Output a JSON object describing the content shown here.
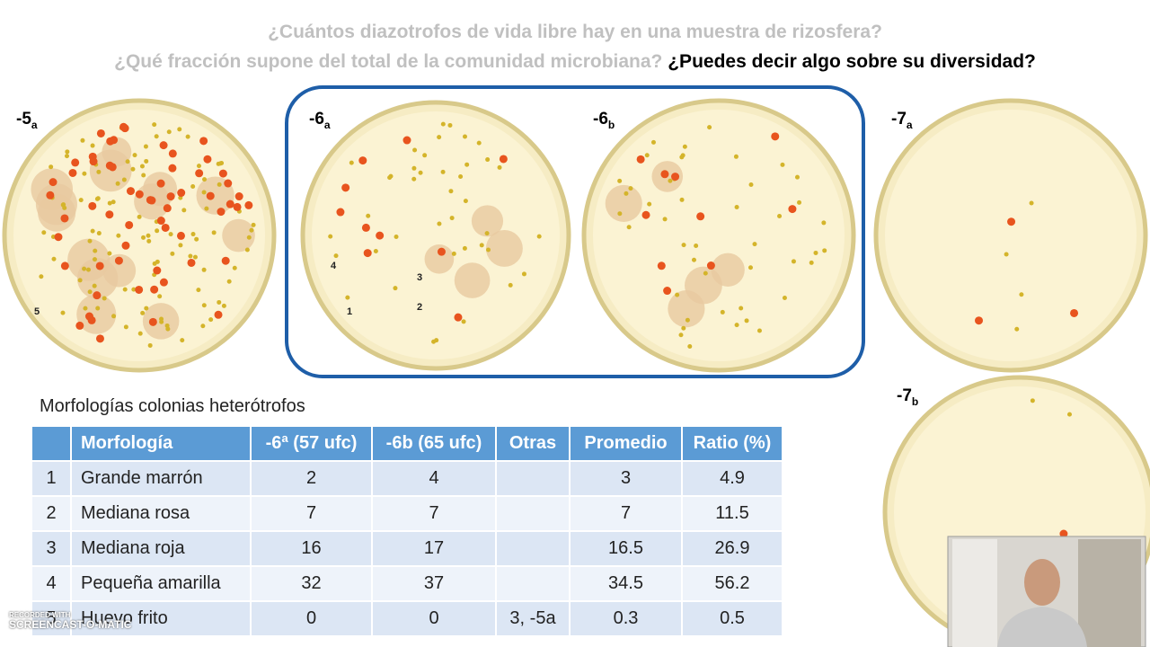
{
  "header": {
    "question_1": "¿Cuántos diazotrofos de vida libre hay en una muestra de rizosfera?",
    "question_2": "¿Qué fracción supone del total de la comunidad microbiana?",
    "question_3": "¿Puedes decir algo sobre su diversidad?"
  },
  "plates": [
    {
      "label": "-5",
      "sub": "a"
    },
    {
      "label": "-6",
      "sub": "a"
    },
    {
      "label": "-6",
      "sub": "b"
    },
    {
      "label": "-7",
      "sub": "a"
    },
    {
      "label": "-7",
      "sub": "b"
    }
  ],
  "colony_marks": [
    "1",
    "2",
    "3",
    "4",
    "5"
  ],
  "table": {
    "title": "Morfologías colonias heterótrofos",
    "header": [
      null,
      "Morfología",
      "-6ª (57 ufc)",
      "-6b (65 ufc)",
      "Otras",
      "Promedio",
      "Ratio (%)"
    ],
    "rows": [
      [
        "1",
        "Grande marrón",
        "2",
        "4",
        null,
        "3",
        "4.9"
      ],
      [
        "2",
        "Mediana rosa",
        "7",
        "7",
        null,
        "7",
        "11.5"
      ],
      [
        "3",
        "Mediana roja",
        "16",
        "17",
        null,
        "16.5",
        "26.9"
      ],
      [
        "4",
        "Pequeña amarilla",
        "32",
        "37",
        null,
        "34.5",
        "56.2"
      ],
      [
        "5",
        "Huevo frito",
        "0",
        "0",
        "3, -5a",
        "0.3",
        "0.5"
      ]
    ]
  },
  "watermark": {
    "line_1": "RECORDED WITH",
    "line_2": "SCREENCAST-O-MATIC"
  }
}
